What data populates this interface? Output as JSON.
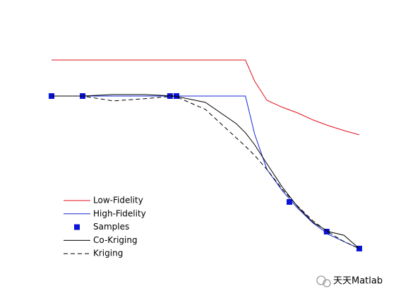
{
  "chart_data": {
    "type": "line",
    "x": [
      0,
      0.1,
      0.2,
      0.3,
      0.4,
      0.5,
      0.6,
      0.63,
      0.66,
      0.7,
      0.75,
      0.8,
      0.85,
      0.9,
      0.95,
      1
    ],
    "xlim": [
      0,
      1
    ],
    "ylim": [
      0,
      1
    ],
    "legend": "lower-left",
    "series": [
      {
        "name": "Low-Fidelity",
        "color": "#e0101a",
        "style": "solid",
        "values": [
          0.95,
          0.95,
          0.95,
          0.95,
          0.95,
          0.95,
          0.95,
          0.95,
          0.85,
          0.76,
          0.727,
          0.7,
          0.667,
          0.64,
          0.617,
          0.597
        ]
      },
      {
        "name": "High-Fidelity",
        "color": "#1428d0",
        "style": "solid",
        "values": [
          0.78,
          0.78,
          0.78,
          0.78,
          0.78,
          0.78,
          0.78,
          0.78,
          0.6,
          0.433,
          0.333,
          0.25,
          0.18,
          0.127,
          0.093,
          0.06
        ]
      },
      {
        "name": "Samples",
        "color": "#0a14d8",
        "style": "marker",
        "x": [
          0,
          0.101,
          0.385,
          0.406,
          0.773,
          0.894,
          1
        ],
        "values": [
          0.78,
          0.78,
          0.78,
          0.78,
          0.28,
          0.14,
          0.06
        ]
      },
      {
        "name": "Co-Kriging",
        "color": "#000000",
        "style": "solid",
        "values": [
          0.78,
          0.78,
          0.787,
          0.787,
          0.78,
          0.75,
          0.65,
          0.607,
          0.55,
          0.46,
          0.35,
          0.257,
          0.183,
          0.14,
          0.123,
          0.06
        ]
      },
      {
        "name": "Kriging",
        "color": "#000000",
        "style": "dashed",
        "values": [
          0.78,
          0.78,
          0.757,
          0.767,
          0.78,
          0.717,
          0.583,
          0.543,
          0.5,
          0.433,
          0.34,
          0.26,
          0.19,
          0.137,
          0.093,
          0.06
        ]
      }
    ]
  },
  "watermark": "天天Matlab"
}
